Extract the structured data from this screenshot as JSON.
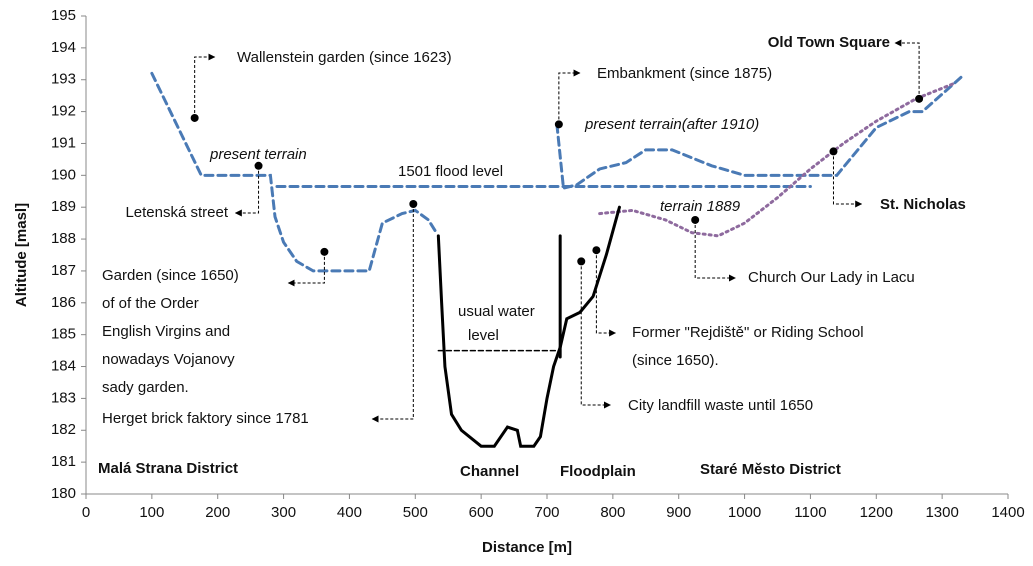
{
  "chart_data": {
    "type": "line",
    "x_label": "Distance [m]",
    "y_label": "Altitude [masl]",
    "xlim": [
      0,
      1400
    ],
    "xticks": [
      0,
      100,
      200,
      300,
      400,
      500,
      600,
      700,
      800,
      900,
      1000,
      1100,
      1200,
      1300,
      1400
    ],
    "ylim": [
      180,
      195
    ],
    "yticks": [
      180,
      181,
      182,
      183,
      184,
      185,
      186,
      187,
      188,
      189,
      190,
      191,
      192,
      193,
      194,
      195
    ],
    "series": [
      {
        "name": "present terrain",
        "color": "#4a7ab5",
        "style": "dashed",
        "x": [
          100,
          175,
          280,
          287,
          300,
          320,
          345,
          430,
          450,
          480,
          500,
          520,
          532
        ],
        "values": [
          193.2,
          190,
          190,
          188.7,
          187.9,
          187.3,
          187,
          187,
          188.5,
          188.8,
          188.9,
          188.6,
          188.2
        ]
      },
      {
        "name": "present terrain(after 1910)",
        "color": "#4a7ab5",
        "style": "dashed",
        "x": [
          715,
          725,
          745,
          780,
          820,
          850,
          890,
          950,
          1000,
          1140,
          1200,
          1250,
          1270,
          1330
        ],
        "values": [
          191.6,
          189.6,
          189.7,
          190.2,
          190.4,
          190.8,
          190.8,
          190.3,
          190,
          190,
          191.5,
          192,
          192,
          193.1
        ]
      },
      {
        "name": "1501 flood level",
        "color": "#4a7ab5",
        "style": "dashed",
        "x": [
          290,
          1100
        ],
        "values": [
          189.65,
          189.65
        ]
      },
      {
        "name": "terrain 1889",
        "color": "#8e6a9e",
        "style": "dotted",
        "x": [
          780,
          830,
          880,
          920,
          960,
          1000,
          1050,
          1100,
          1150,
          1200,
          1260,
          1320
        ],
        "values": [
          188.8,
          188.9,
          188.6,
          188.2,
          188.1,
          188.5,
          189.3,
          190.2,
          191,
          191.7,
          192.4,
          192.9
        ]
      },
      {
        "color": "#000000",
        "style": "solid",
        "x": [
          535,
          540,
          545,
          555,
          570,
          600,
          620,
          640,
          655,
          660,
          680,
          690,
          700,
          710,
          720,
          730,
          750,
          770,
          790,
          810
        ],
        "values": [
          188.1,
          186,
          184,
          182.5,
          182,
          181.5,
          181.5,
          182.1,
          182,
          181.5,
          181.5,
          181.8,
          183,
          184,
          184.6,
          185.5,
          185.7,
          186.2,
          187.5,
          189
        ]
      },
      {
        "color": "#000000",
        "style": "solid",
        "x": [
          720,
          720
        ],
        "values": [
          188.1,
          184.3
        ]
      },
      {
        "name": [
          "usual water",
          "level"
        ],
        "color": "#000000",
        "style": "dashed",
        "x": [
          535,
          720
        ],
        "values": [
          184.5,
          184.5
        ]
      }
    ],
    "annotations": [
      {
        "text": [
          "Wallenstein garden (since 1623)"
        ],
        "x": 165,
        "y": 191.8
      },
      {
        "text": [
          "Embankment (since 1875)"
        ],
        "x": 718,
        "y": 191.6
      },
      {
        "text": [
          "Old Town Square"
        ],
        "x": 1265,
        "y": 192.4,
        "bold": true
      },
      {
        "text": [
          "St. Nicholas"
        ],
        "x": 1135,
        "y": 190.75,
        "bold": true
      },
      {
        "text": [
          "Letenská street"
        ],
        "x": 262,
        "y": 190.3
      },
      {
        "text": [
          "Garden (since 1650)",
          "of  of the Order",
          "English Virgins and",
          "nowadays  Vojanovy",
          "sady garden."
        ],
        "x": 362,
        "y": 187.6
      },
      {
        "text": [
          "Herget brick faktory since 1781"
        ],
        "x": 497,
        "y": 189.1
      },
      {
        "text": [
          "Church  Our Lady in Lacu"
        ],
        "x": 925,
        "y": 188.6
      },
      {
        "text": [
          "Former \"Rejdiště\" or Riding School",
          "(since 1650)."
        ],
        "x": 775,
        "y": 187.65
      },
      {
        "text": [
          "City landfill  waste  until 1650"
        ],
        "x": 752,
        "y": 187.3
      }
    ],
    "region_labels": [
      "Malá Strana  District",
      "Channel",
      "Floodplain",
      "Staré Město District"
    ]
  }
}
